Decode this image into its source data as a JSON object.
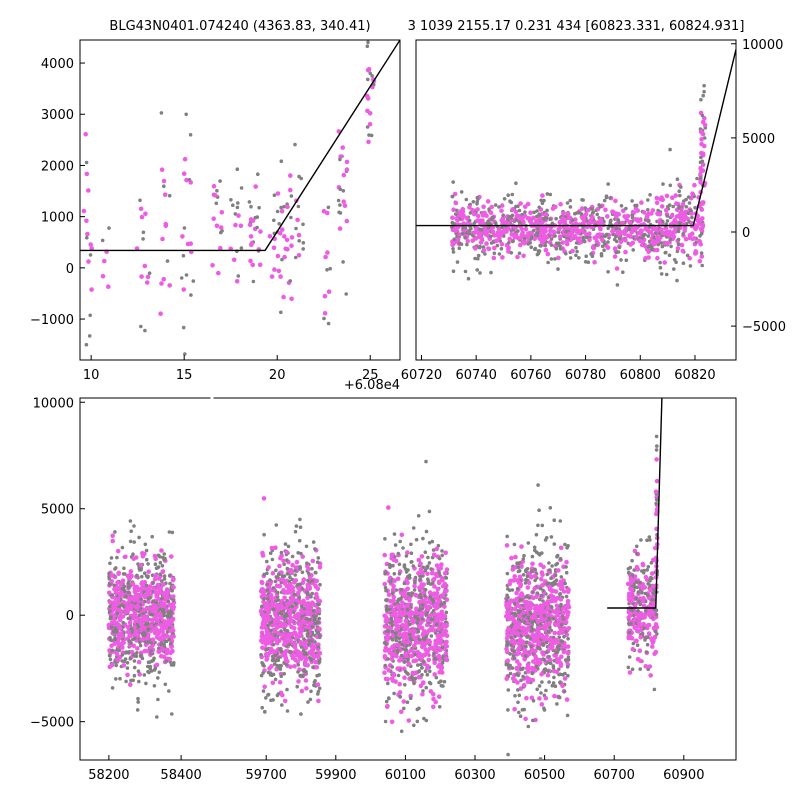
{
  "titles": {
    "left": "BLG43N0401.074240 (4363.83, 340.41)",
    "right": "3 1039 2155.17 0.231 434 [60823.331, 60824.931]"
  },
  "colors": {
    "grey": "#808080",
    "magenta": "#ee5ce4",
    "model": "#000000"
  },
  "chart_data": [
    {
      "id": "top-left",
      "type": "scatter",
      "xlim": [
        9.4,
        26.6
      ],
      "ylim": [
        -1800,
        4450
      ],
      "xticks": [
        10,
        15,
        20,
        25
      ],
      "yticks": [
        -1000,
        0,
        1000,
        2000,
        3000,
        4000
      ],
      "x_offset_label": "+6.08e4",
      "model_line": {
        "x": [
          9.4,
          19.35,
          26.6
        ],
        "y": [
          340,
          340,
          4450
        ]
      },
      "clusters": [
        {
          "xc": 9.8,
          "w": 0.5,
          "mu": 200,
          "sd": 900,
          "n": 16
        },
        {
          "xc": 10.8,
          "w": 0.4,
          "mu": 400,
          "sd": 600,
          "n": 6
        },
        {
          "xc": 12.8,
          "w": 0.7,
          "mu": 0,
          "sd": 800,
          "n": 14
        },
        {
          "xc": 14.0,
          "w": 0.6,
          "mu": 600,
          "sd": 1000,
          "n": 14
        },
        {
          "xc": 15.2,
          "w": 0.7,
          "mu": 700,
          "sd": 900,
          "n": 20
        },
        {
          "xc": 16.8,
          "w": 0.6,
          "mu": 900,
          "sd": 600,
          "n": 16
        },
        {
          "xc": 17.8,
          "w": 0.6,
          "mu": 600,
          "sd": 500,
          "n": 16
        },
        {
          "xc": 18.8,
          "w": 0.6,
          "mu": 700,
          "sd": 500,
          "n": 24
        },
        {
          "xc": 20.2,
          "w": 1.2,
          "mu": 700,
          "sd": 700,
          "n": 40
        },
        {
          "xc": 21.2,
          "w": 0.5,
          "mu": 900,
          "sd": 600,
          "n": 14
        },
        {
          "xc": 22.6,
          "w": 0.5,
          "mu": 300,
          "sd": 800,
          "n": 12
        },
        {
          "xc": 23.5,
          "w": 0.5,
          "mu": 1700,
          "sd": 900,
          "n": 22
        },
        {
          "xc": 25.0,
          "w": 0.4,
          "mu": 3500,
          "sd": 600,
          "n": 22
        }
      ]
    },
    {
      "id": "top-right",
      "type": "scatter",
      "xlim": [
        60718,
        60835
      ],
      "ylim": [
        -6800,
        10200
      ],
      "xticks": [
        60720,
        60740,
        60760,
        60780,
        60800,
        60820
      ],
      "yticks": [
        -5000,
        0,
        5000,
        10000
      ],
      "model_line": {
        "x": [
          60718,
          60819.4,
          60835
        ],
        "y": [
          340,
          340,
          9700
        ]
      },
      "clusters": [
        {
          "xc": 60748,
          "w": 34,
          "mu": 150,
          "sd": 700,
          "n": 420
        },
        {
          "xc": 60785,
          "w": 44,
          "mu": 150,
          "sd": 700,
          "n": 520
        },
        {
          "xc": 60815,
          "w": 16,
          "mu": 250,
          "sd": 1000,
          "n": 220
        },
        {
          "xc": 60823,
          "w": 2,
          "mu": 3500,
          "sd": 2000,
          "n": 40
        }
      ]
    },
    {
      "id": "bottom",
      "type": "scatter",
      "segments": [
        {
          "xlim": [
            58120,
            58480
          ],
          "xticks": [
            58200,
            58400
          ]
        },
        {
          "xlim": [
            59550,
            61050
          ],
          "xticks": [
            59700,
            59900,
            60100,
            60300,
            60500,
            60700,
            60900
          ]
        }
      ],
      "ylim": [
        -6800,
        10200
      ],
      "yticks": [
        -5000,
        0,
        5000,
        10000
      ],
      "model_line": {
        "x": [
          60680,
          60819.4,
          60837
        ],
        "y": [
          340,
          340,
          10200
        ]
      },
      "clusters": [
        {
          "xc": 58290,
          "w": 180,
          "mu": 0,
          "sd": 1300,
          "n": 900
        },
        {
          "xc": 59770,
          "w": 170,
          "mu": -300,
          "sd": 1500,
          "n": 900
        },
        {
          "xc": 60130,
          "w": 180,
          "mu": -400,
          "sd": 1700,
          "n": 900
        },
        {
          "xc": 60480,
          "w": 180,
          "mu": -500,
          "sd": 1600,
          "n": 900
        },
        {
          "xc": 60780,
          "w": 80,
          "mu": 200,
          "sd": 1200,
          "n": 300
        },
        {
          "xc": 60822,
          "w": 4,
          "mu": 3500,
          "sd": 2000,
          "n": 40
        }
      ]
    }
  ]
}
